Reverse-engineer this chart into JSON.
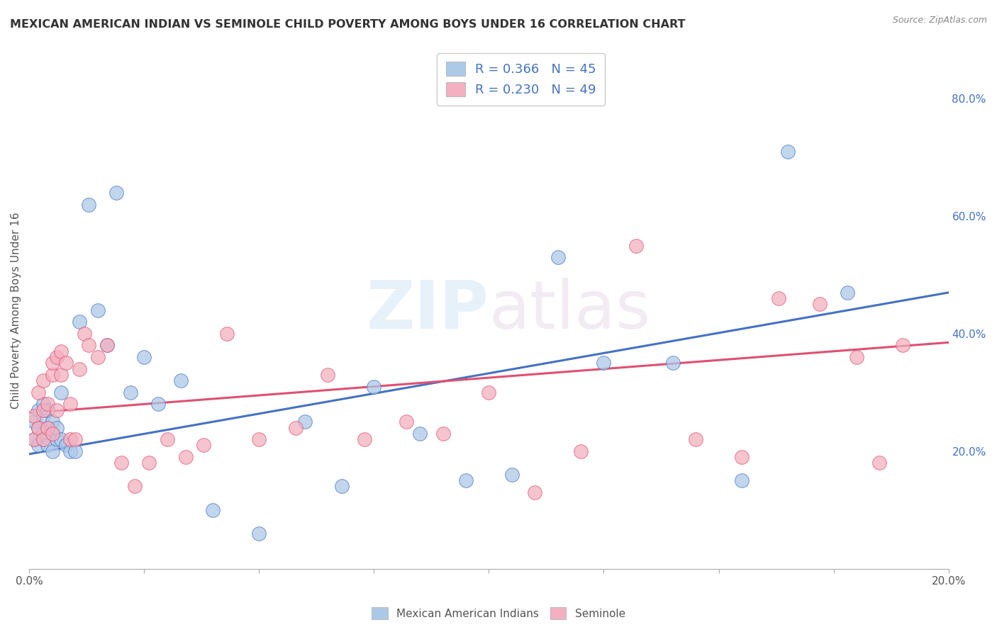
{
  "title": "MEXICAN AMERICAN INDIAN VS SEMINOLE CHILD POVERTY AMONG BOYS UNDER 16 CORRELATION CHART",
  "source": "Source: ZipAtlas.com",
  "xlabel": "",
  "ylabel": "Child Poverty Among Boys Under 16",
  "xlim": [
    0.0,
    0.2
  ],
  "ylim": [
    0.0,
    0.88
  ],
  "right_yticks": [
    0.2,
    0.4,
    0.6,
    0.8
  ],
  "right_yticklabels": [
    "20.0%",
    "40.0%",
    "60.0%",
    "80.0%"
  ],
  "xticks": [
    0.0,
    0.025,
    0.05,
    0.075,
    0.1,
    0.125,
    0.15,
    0.175,
    0.2
  ],
  "xticklabels": [
    "0.0%",
    "",
    "",
    "",
    "",
    "",
    "",
    "",
    "20.0%"
  ],
  "blue_R": 0.366,
  "blue_N": 45,
  "pink_R": 0.23,
  "pink_N": 49,
  "blue_color": "#adc9e8",
  "blue_line_color": "#4472c4",
  "pink_color": "#f4b0c0",
  "pink_line_color": "#e05070",
  "watermark_zip": "ZIP",
  "watermark_atlas": "atlas",
  "background_color": "#ffffff",
  "grid_color": "#d0d0d0",
  "blue_line_y0": 0.195,
  "blue_line_y1": 0.47,
  "pink_line_y0": 0.265,
  "pink_line_y1": 0.385,
  "blue_x": [
    0.001,
    0.001,
    0.002,
    0.002,
    0.002,
    0.003,
    0.003,
    0.003,
    0.003,
    0.004,
    0.004,
    0.004,
    0.005,
    0.005,
    0.005,
    0.006,
    0.006,
    0.007,
    0.007,
    0.008,
    0.009,
    0.01,
    0.011,
    0.013,
    0.015,
    0.017,
    0.019,
    0.022,
    0.025,
    0.028,
    0.033,
    0.04,
    0.05,
    0.06,
    0.068,
    0.075,
    0.085,
    0.095,
    0.105,
    0.115,
    0.125,
    0.14,
    0.155,
    0.165,
    0.178
  ],
  "blue_y": [
    0.22,
    0.25,
    0.24,
    0.27,
    0.21,
    0.23,
    0.26,
    0.28,
    0.22,
    0.24,
    0.27,
    0.21,
    0.23,
    0.25,
    0.2,
    0.22,
    0.24,
    0.3,
    0.22,
    0.21,
    0.2,
    0.2,
    0.42,
    0.62,
    0.44,
    0.38,
    0.64,
    0.3,
    0.36,
    0.28,
    0.32,
    0.1,
    0.06,
    0.25,
    0.14,
    0.31,
    0.23,
    0.15,
    0.16,
    0.53,
    0.35,
    0.35,
    0.15,
    0.71,
    0.47
  ],
  "pink_x": [
    0.001,
    0.001,
    0.002,
    0.002,
    0.003,
    0.003,
    0.003,
    0.004,
    0.004,
    0.005,
    0.005,
    0.005,
    0.006,
    0.006,
    0.007,
    0.007,
    0.008,
    0.009,
    0.009,
    0.01,
    0.011,
    0.012,
    0.013,
    0.015,
    0.017,
    0.02,
    0.023,
    0.026,
    0.03,
    0.034,
    0.038,
    0.043,
    0.05,
    0.058,
    0.065,
    0.073,
    0.082,
    0.09,
    0.1,
    0.11,
    0.12,
    0.132,
    0.145,
    0.155,
    0.163,
    0.172,
    0.18,
    0.185,
    0.19
  ],
  "pink_y": [
    0.22,
    0.26,
    0.24,
    0.3,
    0.22,
    0.27,
    0.32,
    0.24,
    0.28,
    0.23,
    0.33,
    0.35,
    0.27,
    0.36,
    0.33,
    0.37,
    0.35,
    0.22,
    0.28,
    0.22,
    0.34,
    0.4,
    0.38,
    0.36,
    0.38,
    0.18,
    0.14,
    0.18,
    0.22,
    0.19,
    0.21,
    0.4,
    0.22,
    0.24,
    0.33,
    0.22,
    0.25,
    0.23,
    0.3,
    0.13,
    0.2,
    0.55,
    0.22,
    0.19,
    0.46,
    0.45,
    0.36,
    0.18,
    0.38
  ]
}
